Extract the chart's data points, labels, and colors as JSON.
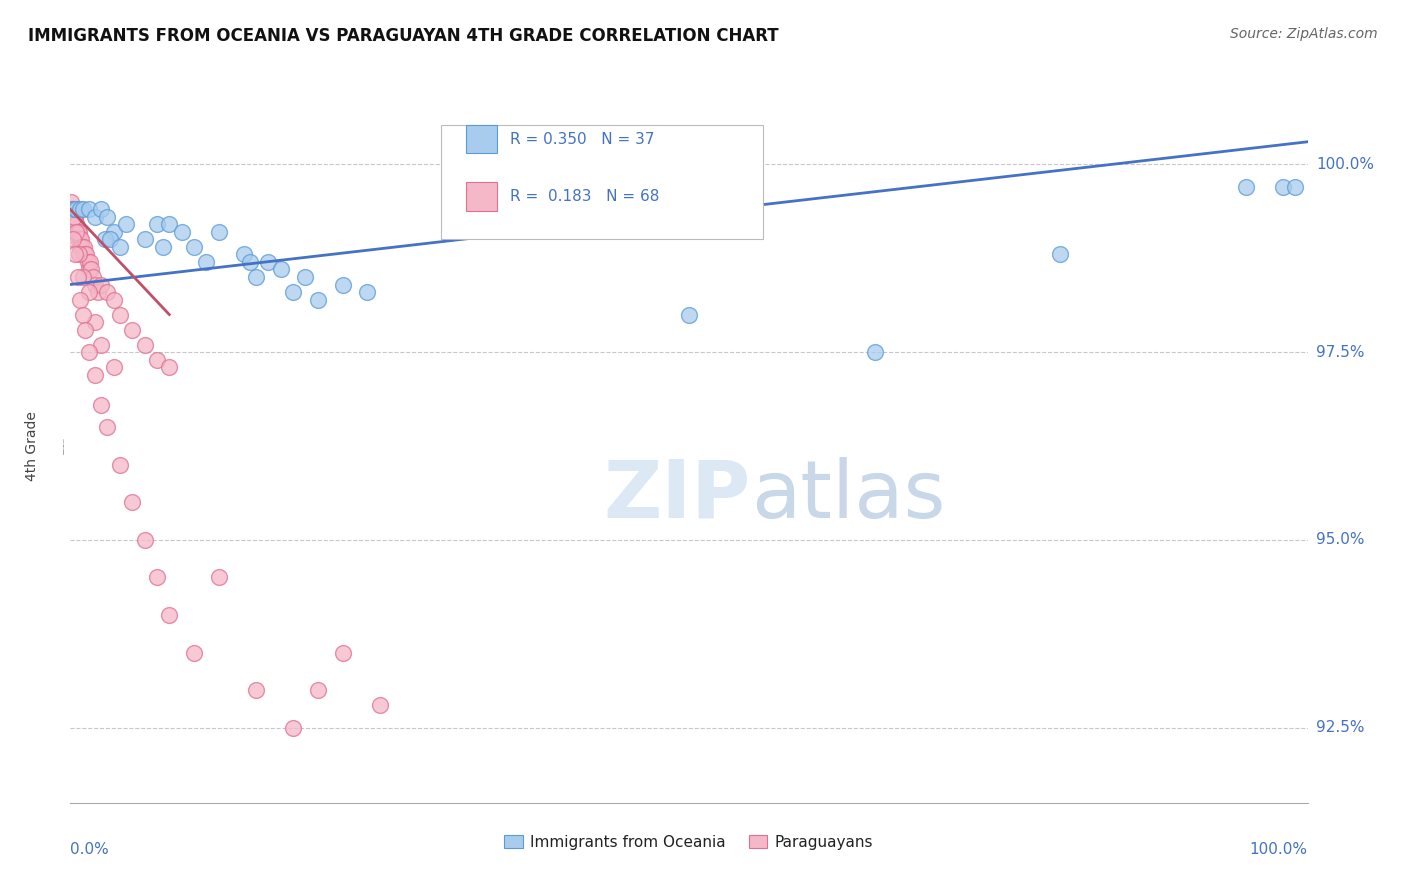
{
  "title": "IMMIGRANTS FROM OCEANIA VS PARAGUAYAN 4TH GRADE CORRELATION CHART",
  "source": "Source: ZipAtlas.com",
  "legend_blue": "Immigrants from Oceania",
  "legend_pink": "Paraguayans",
  "r_blue": 0.35,
  "n_blue": 37,
  "r_pink": 0.183,
  "n_pink": 68,
  "color_blue_fill": "#A8CCEE",
  "color_blue_edge": "#5B9BD5",
  "color_pink_fill": "#F4B8C8",
  "color_pink_edge": "#E07090",
  "color_line_blue": "#4472C4",
  "color_line_pink": "#C0506A",
  "color_text_blue": "#4472C4",
  "color_axis_label": "#4472C4",
  "background": "#FFFFFF",
  "grid_color": "#C8C8C8",
  "watermark_color": "#DCE9F5",
  "blue_x": [
    0.3,
    0.5,
    0.8,
    1.0,
    1.5,
    2.0,
    2.5,
    3.0,
    3.5,
    4.5,
    6.0,
    7.0,
    8.0,
    9.0,
    10.0,
    12.0,
    14.0,
    15.0,
    16.0,
    18.0,
    20.0,
    22.0,
    24.0,
    2.8,
    3.2,
    4.0,
    7.5,
    11.0,
    14.5,
    17.0,
    19.0,
    50.0,
    65.0,
    80.0,
    95.0,
    98.0,
    99.0
  ],
  "blue_y": [
    99.4,
    99.4,
    99.4,
    99.4,
    99.4,
    99.3,
    99.4,
    99.3,
    99.1,
    99.2,
    99.0,
    99.2,
    99.2,
    99.1,
    98.9,
    99.1,
    98.8,
    98.5,
    98.7,
    98.3,
    98.2,
    98.4,
    98.3,
    99.0,
    99.0,
    98.9,
    98.9,
    98.7,
    98.7,
    98.6,
    98.5,
    98.0,
    97.5,
    98.8,
    99.7,
    99.7,
    99.7
  ],
  "pink_x": [
    0.05,
    0.1,
    0.15,
    0.2,
    0.25,
    0.3,
    0.35,
    0.4,
    0.45,
    0.5,
    0.55,
    0.6,
    0.65,
    0.7,
    0.75,
    0.8,
    0.85,
    0.9,
    0.95,
    1.0,
    1.1,
    1.2,
    1.3,
    1.4,
    1.5,
    1.6,
    1.7,
    1.8,
    2.0,
    2.2,
    2.5,
    3.0,
    3.5,
    4.0,
    5.0,
    6.0,
    7.0,
    8.0,
    0.3,
    0.5,
    0.7,
    1.0,
    1.5,
    2.0,
    2.5,
    3.5,
    0.2,
    0.4,
    0.6,
    0.8,
    1.0,
    1.2,
    1.5,
    2.0,
    2.5,
    3.0,
    4.0,
    5.0,
    6.0,
    7.0,
    8.0,
    10.0,
    12.0,
    15.0,
    18.0,
    20.0,
    22.0,
    25.0
  ],
  "pink_y": [
    99.5,
    99.4,
    99.4,
    99.3,
    99.3,
    99.2,
    99.3,
    99.3,
    99.2,
    99.2,
    99.1,
    99.1,
    99.0,
    99.1,
    99.0,
    98.9,
    99.0,
    98.9,
    98.9,
    98.8,
    98.9,
    98.8,
    98.8,
    98.7,
    98.6,
    98.7,
    98.6,
    98.5,
    98.4,
    98.3,
    98.4,
    98.3,
    98.2,
    98.0,
    97.8,
    97.6,
    97.4,
    97.3,
    99.3,
    99.1,
    98.8,
    98.5,
    98.3,
    97.9,
    97.6,
    97.3,
    99.0,
    98.8,
    98.5,
    98.2,
    98.0,
    97.8,
    97.5,
    97.2,
    96.8,
    96.5,
    96.0,
    95.5,
    95.0,
    94.5,
    94.0,
    93.5,
    94.5,
    93.0,
    92.5,
    93.0,
    93.5,
    92.8
  ],
  "xlim": [
    0,
    100
  ],
  "ylim": [
    91.5,
    101.0
  ],
  "yticks": [
    92.5,
    95.0,
    97.5,
    100.0
  ],
  "blue_line_x": [
    0,
    100
  ],
  "blue_line_y": [
    98.4,
    100.3
  ],
  "pink_line_x": [
    0,
    8
  ],
  "pink_line_y": [
    99.4,
    98.0
  ]
}
